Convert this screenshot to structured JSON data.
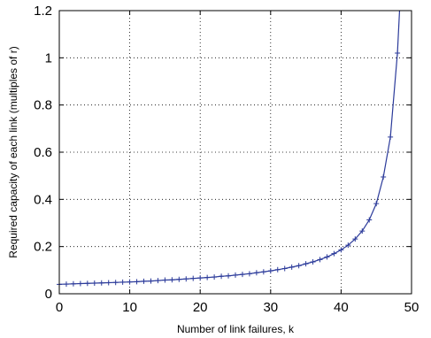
{
  "chart_data": {
    "type": "line",
    "title": "",
    "xlabel": "Number of link failures, k",
    "ylabel": "Required capacity of each link (multiples of r)",
    "xlim": [
      0,
      50
    ],
    "ylim": [
      0,
      1.2
    ],
    "grid": true,
    "x_ticks": [
      "0",
      "10",
      "20",
      "30",
      "40",
      "50"
    ],
    "y_ticks": [
      "0",
      "0.2",
      "0.4",
      "0.6",
      "0.8",
      "1",
      "1.2"
    ],
    "line_color": "#2b3a9a",
    "marker": "+",
    "series": [
      {
        "x": [
          0,
          1,
          2,
          3,
          4,
          5,
          6,
          7,
          8,
          9,
          10,
          11,
          12,
          13,
          14,
          15,
          16,
          17,
          18,
          19,
          20,
          21,
          22,
          23,
          24,
          25,
          26,
          27,
          28,
          29,
          30,
          31,
          32,
          33,
          34,
          35,
          36,
          37,
          38,
          39,
          40,
          41,
          42,
          43,
          44,
          45,
          46,
          47,
          48
        ],
        "y": [
          0.04,
          0.041,
          0.042,
          0.043,
          0.044,
          0.045,
          0.046,
          0.047,
          0.048,
          0.049,
          0.05,
          0.051,
          0.053,
          0.054,
          0.056,
          0.058,
          0.059,
          0.061,
          0.063,
          0.065,
          0.067,
          0.069,
          0.071,
          0.074,
          0.076,
          0.079,
          0.082,
          0.085,
          0.089,
          0.093,
          0.097,
          0.102,
          0.107,
          0.113,
          0.119,
          0.127,
          0.135,
          0.145,
          0.156,
          0.17,
          0.186,
          0.206,
          0.232,
          0.266,
          0.313,
          0.382,
          0.495,
          0.664,
          1.02
        ]
      }
    ]
  }
}
